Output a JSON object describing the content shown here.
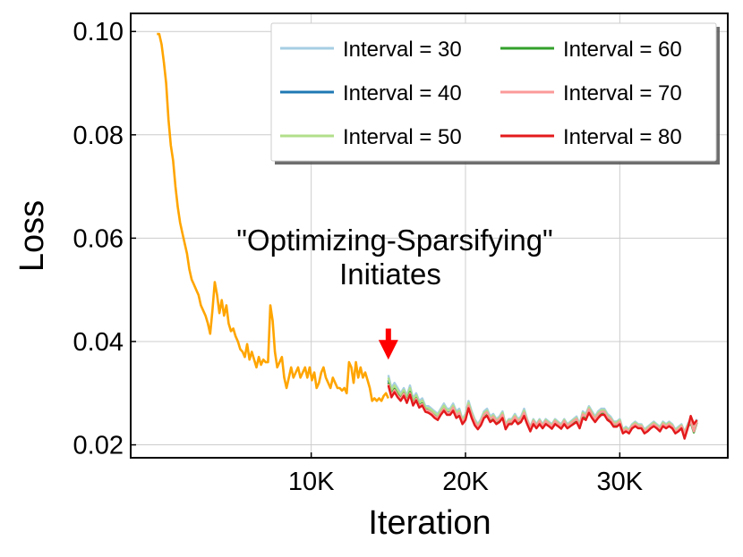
{
  "chart_data": {
    "type": "line",
    "title": "",
    "xlabel": "Iteration",
    "ylabel": "Loss",
    "xlim": [
      -1700,
      37000
    ],
    "ylim": [
      0.0175,
      0.1035
    ],
    "grid": true,
    "legend_position": "top-right",
    "x_ticks": [
      {
        "value": 10000,
        "label": "10K"
      },
      {
        "value": 20000,
        "label": "20K"
      },
      {
        "value": 30000,
        "label": "30K"
      }
    ],
    "y_ticks": [
      {
        "value": 0.02,
        "label": "0.02"
      },
      {
        "value": 0.04,
        "label": "0.04"
      },
      {
        "value": 0.06,
        "label": "0.06"
      },
      {
        "value": 0.08,
        "label": "0.08"
      },
      {
        "value": 0.1,
        "label": "0.10"
      }
    ],
    "annotation": {
      "lines": [
        "\"Optimizing-Sparsifying\"",
        "Initiates"
      ],
      "arrow_x": 15000,
      "arrow_y_from": 0.0425,
      "arrow_y_to": 0.0365,
      "arrow_color": "#ff0000"
    },
    "base_series": {
      "name": "",
      "color": "#ffa500",
      "x": [
        0,
        150,
        300,
        450,
        600,
        750,
        900,
        1050,
        1200,
        1350,
        1500,
        1650,
        1800,
        1950,
        2100,
        2250,
        2400,
        2550,
        2700,
        2850,
        3000,
        3150,
        3300,
        3450,
        3600,
        3750,
        3900,
        4050,
        4200,
        4350,
        4500,
        4650,
        4800,
        4950,
        5100,
        5250,
        5400,
        5550,
        5700,
        5850,
        6000,
        6150,
        6300,
        6450,
        6600,
        6750,
        6900,
        7050,
        7200,
        7350,
        7500,
        7650,
        7800,
        7950,
        8100,
        8250,
        8400,
        8550,
        8700,
        8850,
        9000,
        9150,
        9300,
        9450,
        9600,
        9750,
        9900,
        10050,
        10200,
        10350,
        10500,
        10650,
        10800,
        10950,
        11100,
        11250,
        11400,
        11550,
        11700,
        11850,
        12000,
        12150,
        12300,
        12450,
        12600,
        12750,
        12900,
        13050,
        13200,
        13350,
        13500,
        13650,
        13800,
        13950,
        14100,
        14250,
        14400,
        14550,
        14700,
        14850,
        15000
      ],
      "y": [
        0.0995,
        0.0995,
        0.0975,
        0.094,
        0.09,
        0.083,
        0.078,
        0.075,
        0.07,
        0.066,
        0.063,
        0.061,
        0.059,
        0.057,
        0.054,
        0.052,
        0.051,
        0.05,
        0.049,
        0.047,
        0.046,
        0.045,
        0.0435,
        0.0415,
        0.046,
        0.0515,
        0.049,
        0.0455,
        0.048,
        0.045,
        0.047,
        0.0435,
        0.042,
        0.0425,
        0.041,
        0.04,
        0.0385,
        0.038,
        0.037,
        0.0395,
        0.0365,
        0.038,
        0.0365,
        0.035,
        0.037,
        0.0355,
        0.0365,
        0.036,
        0.036,
        0.047,
        0.044,
        0.038,
        0.035,
        0.036,
        0.037,
        0.033,
        0.031,
        0.033,
        0.035,
        0.033,
        0.034,
        0.035,
        0.033,
        0.034,
        0.035,
        0.033,
        0.035,
        0.0325,
        0.034,
        0.031,
        0.032,
        0.034,
        0.035,
        0.033,
        0.032,
        0.031,
        0.033,
        0.032,
        0.031,
        0.031,
        0.0305,
        0.031,
        0.03,
        0.036,
        0.035,
        0.032,
        0.036,
        0.033,
        0.035,
        0.033,
        0.034,
        0.0325,
        0.031,
        0.0285,
        0.029,
        0.0285,
        0.029,
        0.0285,
        0.0295,
        0.03,
        0.029
      ]
    },
    "overlap_x": [
      15000,
      15200,
      15400,
      15600,
      15800,
      16000,
      16200,
      16400,
      16600,
      16800,
      17000,
      17200,
      17400,
      17600,
      17800,
      18000,
      18200,
      18400,
      18600,
      18800,
      19000,
      19200,
      19400,
      19600,
      19800,
      20000,
      20200,
      20400,
      20600,
      20800,
      21000,
      21200,
      21400,
      21600,
      21800,
      22000,
      22200,
      22400,
      22600,
      22800,
      23000,
      23200,
      23400,
      23600,
      23800,
      24000,
      24200,
      24400,
      24600,
      24800,
      25000,
      25200,
      25400,
      25600,
      25800,
      26000,
      26200,
      26400,
      26600,
      26800,
      27000,
      27200,
      27400,
      27600,
      27800,
      28000,
      28200,
      28400,
      28600,
      28800,
      29000,
      29200,
      29400,
      29600,
      29800,
      30000,
      30200,
      30400,
      30600,
      30800,
      31000,
      31200,
      31400,
      31600,
      31800,
      32000,
      32200,
      32400,
      32600,
      32800,
      33000,
      33200,
      33400,
      33600,
      33800,
      34000,
      34200,
      34400,
      34600,
      34800,
      35000
    ],
    "series": [
      {
        "name": "Interval = 30",
        "color": "#a6cee3",
        "values": [
          0.0335,
          0.031,
          0.032,
          0.031,
          0.03,
          0.031,
          0.0295,
          0.0315,
          0.029,
          0.03,
          0.0285,
          0.029,
          0.0275,
          0.0275,
          0.027,
          0.0265,
          0.026,
          0.027,
          0.028,
          0.027,
          0.027,
          0.028,
          0.0265,
          0.027,
          0.025,
          0.026,
          0.0285,
          0.0265,
          0.025,
          0.024,
          0.025,
          0.0265,
          0.027,
          0.0255,
          0.026,
          0.025,
          0.0255,
          0.0265,
          0.024,
          0.025,
          0.025,
          0.026,
          0.025,
          0.0255,
          0.027,
          0.025,
          0.0235,
          0.025,
          0.024,
          0.025,
          0.024,
          0.025,
          0.0245,
          0.024,
          0.025,
          0.0245,
          0.024,
          0.025,
          0.024,
          0.0245,
          0.025,
          0.0255,
          0.024,
          0.0265,
          0.026,
          0.0275,
          0.0265,
          0.0255,
          0.0265,
          0.027,
          0.027,
          0.026,
          0.0255,
          0.0245,
          0.0245,
          0.025,
          0.023,
          0.0235,
          0.023,
          0.024,
          0.0245,
          0.024,
          0.024,
          0.023,
          0.0235,
          0.024,
          0.0245,
          0.024,
          0.0235,
          0.0245,
          0.024,
          0.0245,
          0.024,
          0.023,
          0.0235,
          0.024,
          0.0225,
          0.024,
          0.025,
          0.023,
          0.025
        ]
      },
      {
        "name": "Interval = 40",
        "color": "#1f78b4",
        "values": [
          0.0325,
          0.03,
          0.031,
          0.03,
          0.0292,
          0.0302,
          0.0288,
          0.0305,
          0.0282,
          0.0292,
          0.0278,
          0.0282,
          0.027,
          0.0268,
          0.0264,
          0.0258,
          0.0254,
          0.0264,
          0.0272,
          0.0264,
          0.0264,
          0.0272,
          0.0258,
          0.0262,
          0.0245,
          0.0254,
          0.0277,
          0.0258,
          0.0244,
          0.0235,
          0.0244,
          0.0258,
          0.0262,
          0.025,
          0.0254,
          0.0245,
          0.025,
          0.0258,
          0.0235,
          0.0245,
          0.0245,
          0.0254,
          0.0245,
          0.025,
          0.0262,
          0.0245,
          0.023,
          0.0245,
          0.0236,
          0.0245,
          0.0236,
          0.0245,
          0.024,
          0.0235,
          0.0245,
          0.024,
          0.0235,
          0.0245,
          0.0236,
          0.024,
          0.0245,
          0.025,
          0.0236,
          0.0258,
          0.0254,
          0.0268,
          0.0258,
          0.025,
          0.0258,
          0.0264,
          0.0264,
          0.0254,
          0.025,
          0.024,
          0.024,
          0.0245,
          0.0226,
          0.023,
          0.0226,
          0.0236,
          0.024,
          0.0236,
          0.0236,
          0.0226,
          0.023,
          0.0236,
          0.024,
          0.0236,
          0.023,
          0.024,
          0.0236,
          0.024,
          0.0236,
          0.0226,
          0.023,
          0.0236,
          0.0222,
          0.0236,
          0.0245,
          0.0226,
          0.0245
        ]
      },
      {
        "name": "Interval = 50",
        "color": "#b2df8a",
        "values": [
          0.033,
          0.0305,
          0.0315,
          0.0305,
          0.0296,
          0.0306,
          0.0291,
          0.031,
          0.0286,
          0.0296,
          0.0281,
          0.0286,
          0.0272,
          0.0271,
          0.0267,
          0.0262,
          0.0257,
          0.0267,
          0.0276,
          0.0267,
          0.0267,
          0.0276,
          0.0262,
          0.0266,
          0.0248,
          0.0257,
          0.0281,
          0.0262,
          0.0247,
          0.0238,
          0.0247,
          0.0262,
          0.0266,
          0.0252,
          0.0257,
          0.0248,
          0.0252,
          0.0262,
          0.0238,
          0.0248,
          0.0248,
          0.0257,
          0.0248,
          0.0252,
          0.0266,
          0.0248,
          0.0233,
          0.0248,
          0.0238,
          0.0248,
          0.0238,
          0.0248,
          0.0243,
          0.0238,
          0.0248,
          0.0243,
          0.0238,
          0.0248,
          0.0238,
          0.0243,
          0.0248,
          0.0252,
          0.0238,
          0.0262,
          0.0257,
          0.0272,
          0.0262,
          0.0252,
          0.0262,
          0.0267,
          0.0267,
          0.0257,
          0.0252,
          0.0243,
          0.0243,
          0.0248,
          0.0228,
          0.0233,
          0.0228,
          0.0238,
          0.0243,
          0.0238,
          0.0238,
          0.0228,
          0.0233,
          0.0238,
          0.0243,
          0.0238,
          0.0233,
          0.0243,
          0.0238,
          0.0243,
          0.0238,
          0.0228,
          0.0233,
          0.0238,
          0.0224,
          0.0238,
          0.0248,
          0.0228,
          0.0248
        ]
      },
      {
        "name": "Interval = 60",
        "color": "#33a02c",
        "values": [
          0.032,
          0.0298,
          0.0308,
          0.0298,
          0.029,
          0.03,
          0.0286,
          0.0302,
          0.028,
          0.029,
          0.0276,
          0.028,
          0.0268,
          0.0266,
          0.0262,
          0.0256,
          0.0252,
          0.0262,
          0.027,
          0.0262,
          0.0262,
          0.027,
          0.0256,
          0.026,
          0.0243,
          0.0252,
          0.0275,
          0.0256,
          0.0242,
          0.0233,
          0.0242,
          0.0256,
          0.026,
          0.0248,
          0.0252,
          0.0243,
          0.0248,
          0.0256,
          0.0233,
          0.0243,
          0.0243,
          0.0252,
          0.0243,
          0.0248,
          0.026,
          0.0243,
          0.0228,
          0.0243,
          0.0234,
          0.0243,
          0.0234,
          0.0243,
          0.0238,
          0.0233,
          0.0243,
          0.0238,
          0.0233,
          0.0243,
          0.0234,
          0.0238,
          0.0243,
          0.0248,
          0.0234,
          0.0256,
          0.0252,
          0.0266,
          0.0256,
          0.0248,
          0.0256,
          0.0262,
          0.0262,
          0.0252,
          0.0248,
          0.0238,
          0.0238,
          0.0243,
          0.0224,
          0.0228,
          0.0224,
          0.0234,
          0.0238,
          0.0234,
          0.0234,
          0.0224,
          0.0228,
          0.0234,
          0.0238,
          0.0234,
          0.0228,
          0.0238,
          0.0234,
          0.0238,
          0.0234,
          0.0224,
          0.0228,
          0.0234,
          0.022,
          0.0234,
          0.0243,
          0.0224,
          0.0243
        ]
      },
      {
        "name": "Interval = 70",
        "color": "#fb9a99",
        "values": [
          0.0318,
          0.0296,
          0.0306,
          0.0296,
          0.0289,
          0.0299,
          0.0285,
          0.03,
          0.0279,
          0.0289,
          0.0275,
          0.0279,
          0.0267,
          0.0266,
          0.0262,
          0.0256,
          0.0252,
          0.0262,
          0.027,
          0.0262,
          0.0262,
          0.0272,
          0.0257,
          0.0262,
          0.0244,
          0.0253,
          0.0276,
          0.0258,
          0.0244,
          0.0235,
          0.0244,
          0.0258,
          0.0263,
          0.025,
          0.0254,
          0.0246,
          0.025,
          0.0258,
          0.0235,
          0.0245,
          0.0245,
          0.0254,
          0.0246,
          0.025,
          0.0262,
          0.0246,
          0.0232,
          0.0246,
          0.0237,
          0.0246,
          0.0237,
          0.0246,
          0.0241,
          0.0236,
          0.0246,
          0.0241,
          0.0236,
          0.0246,
          0.0237,
          0.0241,
          0.0246,
          0.025,
          0.0237,
          0.0259,
          0.0255,
          0.0269,
          0.0259,
          0.025,
          0.0259,
          0.0264,
          0.0264,
          0.0254,
          0.025,
          0.024,
          0.024,
          0.0245,
          0.0226,
          0.023,
          0.0226,
          0.0236,
          0.024,
          0.0236,
          0.0236,
          0.0226,
          0.023,
          0.0236,
          0.024,
          0.0236,
          0.023,
          0.024,
          0.0236,
          0.024,
          0.0236,
          0.0226,
          0.023,
          0.0236,
          0.0222,
          0.0236,
          0.0245,
          0.0226,
          0.0245
        ]
      },
      {
        "name": "Interval = 80",
        "color": "#e31a1c",
        "values": [
          0.0315,
          0.0292,
          0.0302,
          0.0292,
          0.0285,
          0.0295,
          0.0281,
          0.0297,
          0.0276,
          0.0286,
          0.0272,
          0.0276,
          0.0264,
          0.0262,
          0.0258,
          0.0252,
          0.0248,
          0.0258,
          0.0266,
          0.0258,
          0.0258,
          0.0266,
          0.0252,
          0.0256,
          0.024,
          0.0248,
          0.0271,
          0.0252,
          0.0238,
          0.023,
          0.0238,
          0.0252,
          0.0256,
          0.0244,
          0.0248,
          0.024,
          0.0244,
          0.0252,
          0.023,
          0.024,
          0.024,
          0.0248,
          0.024,
          0.0244,
          0.0256,
          0.024,
          0.0226,
          0.024,
          0.0232,
          0.024,
          0.0232,
          0.024,
          0.0236,
          0.0231,
          0.024,
          0.0236,
          0.0231,
          0.024,
          0.0232,
          0.0236,
          0.024,
          0.0244,
          0.0232,
          0.0252,
          0.0248,
          0.0262,
          0.0252,
          0.0244,
          0.0252,
          0.0258,
          0.0258,
          0.0248,
          0.0244,
          0.0235,
          0.0235,
          0.024,
          0.0222,
          0.0226,
          0.0222,
          0.0232,
          0.0236,
          0.0232,
          0.0232,
          0.0222,
          0.0226,
          0.0232,
          0.0236,
          0.0232,
          0.0226,
          0.0236,
          0.0232,
          0.0236,
          0.0232,
          0.0222,
          0.0226,
          0.0232,
          0.0212,
          0.0232,
          0.0256,
          0.024,
          0.0248
        ]
      }
    ]
  }
}
